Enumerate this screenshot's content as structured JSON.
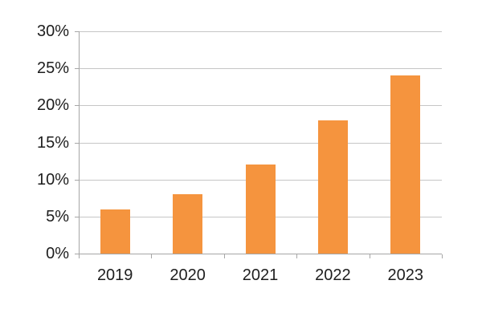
{
  "chart_data": {
    "type": "bar",
    "title": "",
    "xlabel": "",
    "ylabel": "",
    "categories": [
      "2019",
      "2020",
      "2021",
      "2022",
      "2023"
    ],
    "values": [
      6,
      8,
      12,
      18,
      24
    ],
    "ylim": [
      0,
      30
    ],
    "ytick_values": [
      0,
      5,
      10,
      15,
      20,
      25,
      30
    ],
    "ytick_labels": [
      "0%",
      "5%",
      "10%",
      "15%",
      "20%",
      "25%",
      "30%"
    ],
    "grid": true,
    "legend": "none",
    "colors": {
      "bar": "#F5943E",
      "gridline": "#C6C6C6",
      "axis": "#A6A6A6",
      "text": "#1E1E1E",
      "background": "#FFFFFF"
    }
  }
}
